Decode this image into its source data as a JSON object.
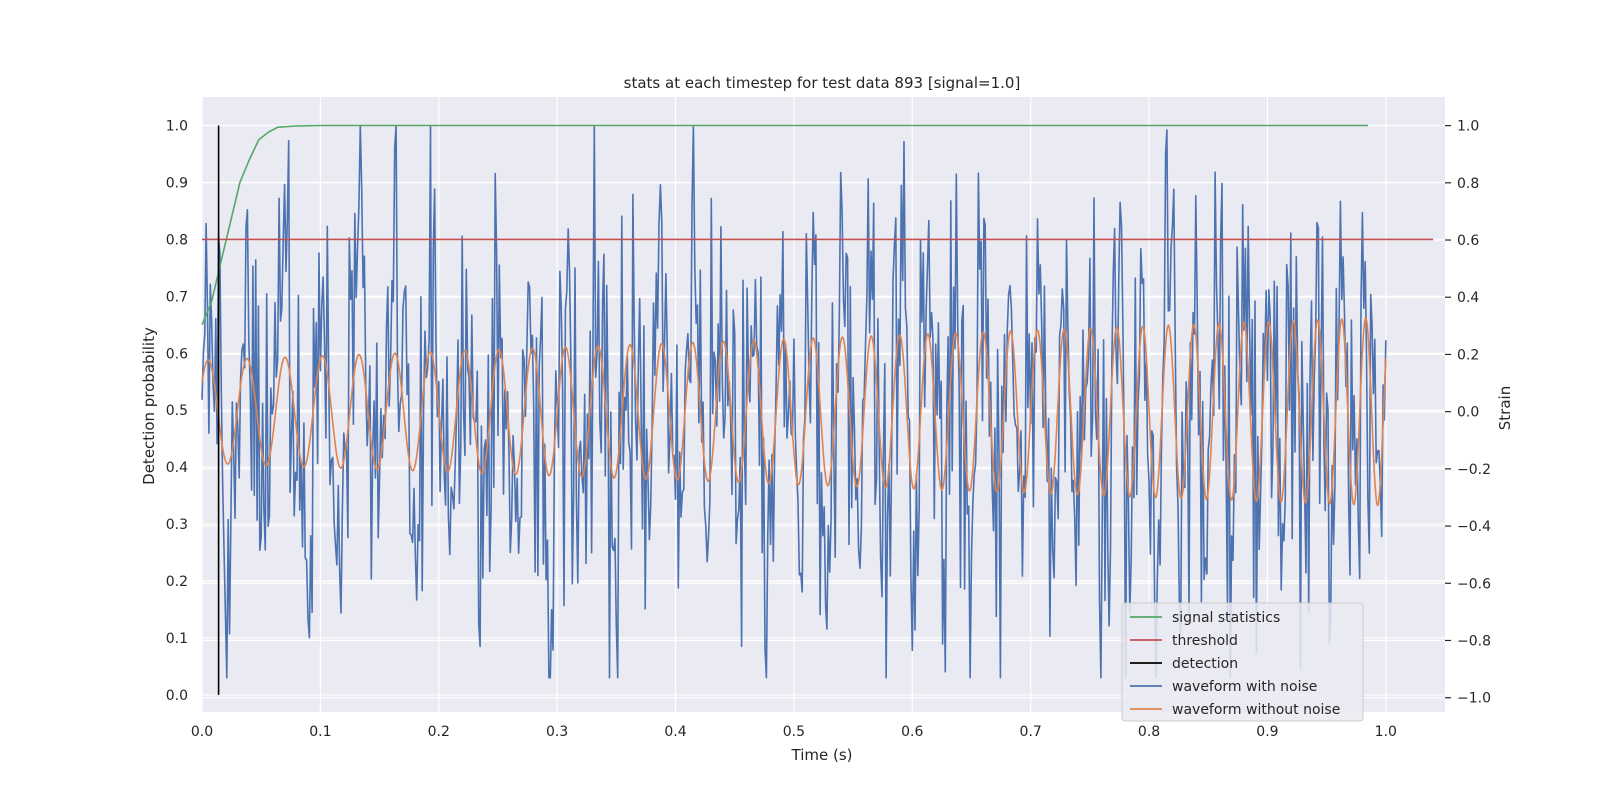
{
  "chart_data": {
    "type": "line",
    "title": "stats at each timestep for test data 893 [signal=1.0]",
    "xlabel": "Time (s)",
    "ylabel_left": "Detection probability",
    "ylabel_right": "Strain",
    "xlim": [
      0.0,
      1.05
    ],
    "ylim_left": [
      -0.03,
      1.05
    ],
    "ylim_right": [
      -1.05,
      1.1
    ],
    "x_ticks": [
      0.0,
      0.1,
      0.2,
      0.3,
      0.4,
      0.5,
      0.6,
      0.7,
      0.8,
      0.9,
      1.0
    ],
    "x_tick_labels": [
      "0.0",
      "0.1",
      "0.2",
      "0.3",
      "0.4",
      "0.5",
      "0.6",
      "0.7",
      "0.8",
      "0.9",
      "1.0"
    ],
    "y_left_ticks": [
      0.0,
      0.1,
      0.2,
      0.3,
      0.4,
      0.5,
      0.6,
      0.7,
      0.8,
      0.9,
      1.0
    ],
    "y_left_tick_labels": [
      "0.0",
      "0.1",
      "0.2",
      "0.3",
      "0.4",
      "0.5",
      "0.6",
      "0.7",
      "0.8",
      "0.9",
      "1.0"
    ],
    "y_right_ticks": [
      -1.0,
      -0.8,
      -0.6,
      -0.4,
      -0.2,
      0.0,
      0.2,
      0.4,
      0.6,
      0.8,
      1.0
    ],
    "y_right_tick_labels": [
      "−1.0",
      "−0.8",
      "−0.6",
      "−0.4",
      "−0.2",
      "0.0",
      "0.2",
      "0.4",
      "0.6",
      "0.8",
      "1.0"
    ],
    "grid": true,
    "legend_position": "bottom-right",
    "series": [
      {
        "name": "signal statistics",
        "axis": "left",
        "color": "#55a868",
        "x": [
          0.0,
          0.008,
          0.016,
          0.024,
          0.032,
          0.04,
          0.048,
          0.056,
          0.064,
          0.08,
          0.1,
          0.3,
          0.6,
          0.985
        ],
        "y": [
          0.65,
          0.69,
          0.76,
          0.83,
          0.9,
          0.94,
          0.975,
          0.988,
          0.997,
          0.999,
          1.0,
          1.0,
          1.0,
          1.0
        ]
      },
      {
        "name": "threshold",
        "axis": "left",
        "color": "#c44e52",
        "x": [
          0.0,
          1.04
        ],
        "y": [
          0.8,
          0.8
        ]
      },
      {
        "name": "detection",
        "axis": "left",
        "color": "#000000",
        "x": [
          0.014,
          0.014
        ],
        "y": [
          0.0,
          1.0
        ]
      },
      {
        "name": "waveform with noise",
        "axis": "right",
        "color": "#4c72b0",
        "x_start": 0.0,
        "x_end": 1.0,
        "amplitude": 0.35,
        "noise_std": 0.32,
        "y_max": 1.0,
        "y_min": -0.93
      },
      {
        "name": "waveform without noise",
        "axis": "right",
        "color": "#dd8452",
        "x_start": 0.0,
        "x_end": 1.0,
        "amplitude_start": 0.18,
        "amplitude_end": 0.33,
        "cycles_start": 30,
        "cycles_end": 50
      }
    ]
  }
}
